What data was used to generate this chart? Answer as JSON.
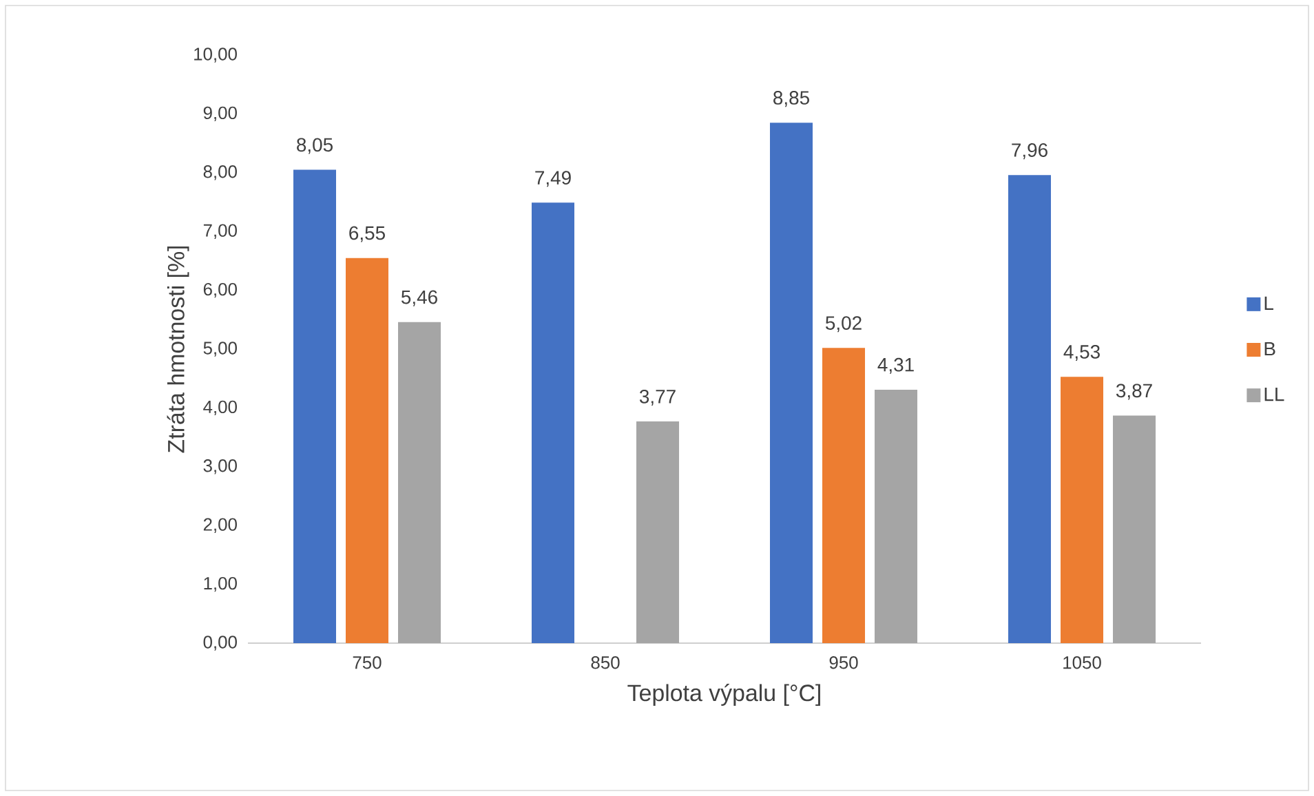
{
  "chart_data": {
    "type": "bar",
    "xlabel": "Teplota výpalu [°C]",
    "ylabel": "Ztráta hmotnosti [%]",
    "categories": [
      "750",
      "850",
      "950",
      "1050"
    ],
    "series": [
      {
        "name": "L",
        "color": "#4472c4",
        "values": [
          8.05,
          7.49,
          8.85,
          7.96
        ],
        "value_labels": [
          "8,05",
          "7,49",
          "8,85",
          "7,96"
        ]
      },
      {
        "name": "B",
        "color": "#ed7d31",
        "values": [
          6.55,
          null,
          5.02,
          4.53
        ],
        "value_labels": [
          "6,55",
          null,
          "5,02",
          "4,53"
        ]
      },
      {
        "name": "LL",
        "color": "#a5a5a5",
        "values": [
          5.46,
          3.77,
          4.31,
          3.87
        ],
        "value_labels": [
          "5,46",
          "3,77",
          "4,31",
          "3,87"
        ]
      }
    ],
    "ylim": [
      0,
      10
    ],
    "yticks": [
      {
        "value": 0,
        "label": "0,00"
      },
      {
        "value": 1,
        "label": "1,00"
      },
      {
        "value": 2,
        "label": "2,00"
      },
      {
        "value": 3,
        "label": "3,00"
      },
      {
        "value": 4,
        "label": "4,00"
      },
      {
        "value": 5,
        "label": "5,00"
      },
      {
        "value": 6,
        "label": "6,00"
      },
      {
        "value": 7,
        "label": "7,00"
      },
      {
        "value": 8,
        "label": "8,00"
      },
      {
        "value": 9,
        "label": "9,00"
      },
      {
        "value": 10,
        "label": "10,00"
      }
    ],
    "grid": false,
    "legend": "right"
  }
}
